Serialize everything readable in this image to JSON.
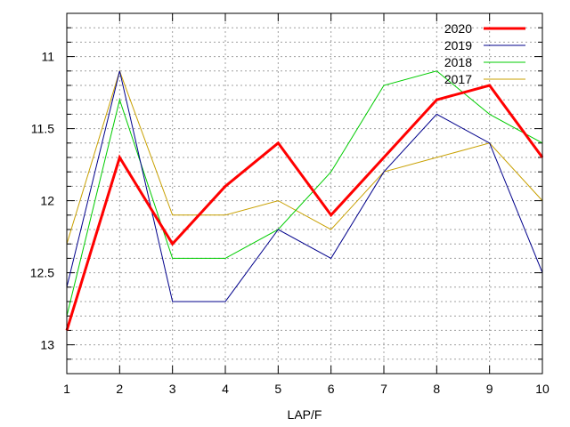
{
  "chart_data": {
    "type": "line",
    "title": "",
    "xlabel": "LAP/F",
    "ylabel": "",
    "x": [
      1,
      2,
      3,
      4,
      5,
      6,
      7,
      8,
      9,
      10
    ],
    "xlim": [
      1,
      10
    ],
    "ylim": [
      13.2,
      10.7
    ],
    "y_inverted": true,
    "x_ticks": [
      1,
      2,
      3,
      4,
      5,
      6,
      7,
      8,
      9,
      10
    ],
    "y_ticks": [
      11,
      11.5,
      12,
      12.5,
      13
    ],
    "y_minor_step": 0.1,
    "grid": true,
    "legend_position": "top-right",
    "series": [
      {
        "name": "2020",
        "color": "#ff0000",
        "width": 3,
        "values": [
          12.9,
          11.7,
          12.3,
          11.9,
          11.6,
          12.1,
          11.7,
          11.3,
          11.2,
          11.7
        ]
      },
      {
        "name": "2019",
        "color": "#00008b",
        "width": 1,
        "values": [
          12.6,
          11.1,
          12.7,
          12.7,
          12.2,
          12.4,
          11.8,
          11.4,
          11.6,
          12.5
        ]
      },
      {
        "name": "2018",
        "color": "#00cc00",
        "width": 1,
        "values": [
          12.8,
          11.3,
          12.4,
          12.4,
          12.2,
          11.8,
          11.2,
          11.1,
          11.4,
          11.6
        ]
      },
      {
        "name": "2017",
        "color": "#c8a000",
        "width": 1,
        "values": [
          12.3,
          11.1,
          12.1,
          12.1,
          12.0,
          12.2,
          11.8,
          11.7,
          11.6,
          12.0
        ]
      }
    ]
  }
}
